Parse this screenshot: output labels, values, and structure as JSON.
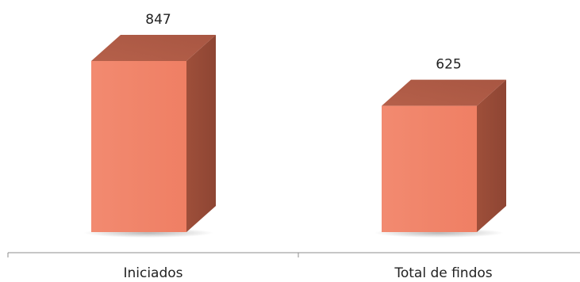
{
  "chart_data": {
    "type": "bar",
    "style": "3d-column",
    "categories": [
      "Iniciados",
      "Total de findos"
    ],
    "values": [
      847,
      625
    ],
    "data_labels": [
      "847",
      "625"
    ],
    "title": "",
    "xlabel": "",
    "ylabel": "",
    "ylim": [
      0,
      900
    ],
    "grid": false,
    "legend": "none",
    "colors": {
      "bar_front": "#f2846a",
      "bar_side": "#9a4d38",
      "bar_top": "#b05c45",
      "axis": "#8c8c8c"
    }
  }
}
